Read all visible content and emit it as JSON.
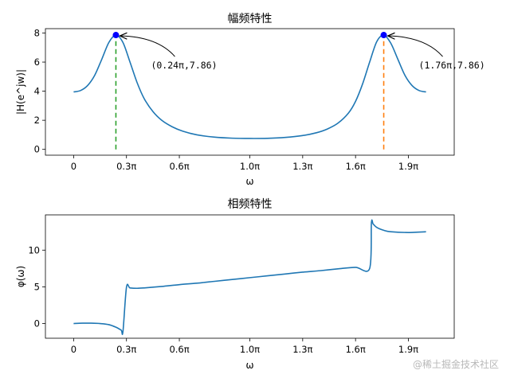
{
  "chart_data": [
    {
      "type": "line",
      "title": "幅频特性",
      "xlabel": "ω",
      "ylabel": "|H(e^jw)|",
      "xlim": [
        -0.16,
        2.16
      ],
      "ylim": [
        -0.4,
        8.3
      ],
      "grid": false,
      "color": "#1f77b4",
      "xticks": [
        {
          "v": 0,
          "label": "0"
        },
        {
          "v": 0.3,
          "label": "0.3π"
        },
        {
          "v": 0.6,
          "label": "0.6π"
        },
        {
          "v": 1.0,
          "label": "1.0π"
        },
        {
          "v": 1.3,
          "label": "1.3π"
        },
        {
          "v": 1.6,
          "label": "1.6π"
        },
        {
          "v": 1.9,
          "label": "1.9π"
        }
      ],
      "yticks": [
        {
          "v": 0,
          "label": "0"
        },
        {
          "v": 2,
          "label": "2"
        },
        {
          "v": 4,
          "label": "4"
        },
        {
          "v": 6,
          "label": "6"
        },
        {
          "v": 8,
          "label": "8"
        }
      ],
      "x": [
        0.0,
        0.04,
        0.08,
        0.12,
        0.16,
        0.2,
        0.24,
        0.28,
        0.32,
        0.36,
        0.4,
        0.45,
        0.5,
        0.56,
        0.62,
        0.7,
        0.8,
        0.9,
        1.0,
        1.1,
        1.2,
        1.3,
        1.38,
        1.44,
        1.5,
        1.56,
        1.6,
        1.64,
        1.68,
        1.72,
        1.76,
        1.8,
        1.84,
        1.88,
        1.92,
        1.96,
        2.0
      ],
      "y": [
        3.95,
        4.05,
        4.4,
        5.1,
        6.2,
        7.35,
        7.86,
        7.35,
        6.0,
        4.6,
        3.5,
        2.6,
        2.0,
        1.55,
        1.25,
        1.0,
        0.84,
        0.77,
        0.75,
        0.76,
        0.82,
        0.95,
        1.15,
        1.4,
        1.8,
        2.5,
        3.3,
        4.5,
        6.0,
        7.4,
        7.86,
        7.3,
        6.2,
        5.1,
        4.4,
        4.05,
        3.95
      ],
      "peaks": [
        {
          "x": 0.24,
          "y": 7.86,
          "label": "(0.24π,7.86)",
          "line_color": "#2ca02c"
        },
        {
          "x": 1.76,
          "y": 7.86,
          "label": "(1.76π,7.86)",
          "line_color": "#ff7f0e"
        }
      ],
      "marker_color": "#0000ff"
    },
    {
      "type": "line",
      "title": "相频特性",
      "xlabel": "ω",
      "ylabel": "φ(ω)",
      "xlim": [
        -0.16,
        2.16
      ],
      "ylim": [
        -2.0,
        14.8
      ],
      "grid": false,
      "color": "#1f77b4",
      "xticks": [
        {
          "v": 0,
          "label": "0"
        },
        {
          "v": 0.3,
          "label": "0.3π"
        },
        {
          "v": 0.6,
          "label": "0.6π"
        },
        {
          "v": 1.0,
          "label": "1.0π"
        },
        {
          "v": 1.3,
          "label": "1.3π"
        },
        {
          "v": 1.6,
          "label": "1.6π"
        },
        {
          "v": 1.9,
          "label": "1.9π"
        }
      ],
      "yticks": [
        {
          "v": 0,
          "label": "0"
        },
        {
          "v": 5,
          "label": "5"
        },
        {
          "v": 10,
          "label": "10"
        }
      ],
      "x": [
        0.0,
        0.05,
        0.1,
        0.15,
        0.2,
        0.24,
        0.27,
        0.28,
        0.3,
        0.32,
        0.36,
        0.4,
        0.5,
        0.6,
        0.7,
        0.8,
        0.9,
        1.0,
        1.1,
        1.2,
        1.3,
        1.4,
        1.5,
        1.6,
        1.68,
        1.69,
        1.7,
        1.72,
        1.76,
        1.8,
        1.9,
        2.0
      ],
      "y": [
        0.0,
        0.05,
        0.05,
        0.0,
        -0.15,
        -0.5,
        -0.9,
        -1.1,
        4.95,
        4.85,
        4.8,
        4.85,
        5.05,
        5.3,
        5.5,
        5.75,
        6.0,
        6.25,
        6.5,
        6.75,
        7.0,
        7.2,
        7.45,
        7.65,
        7.5,
        13.7,
        13.55,
        13.1,
        12.7,
        12.5,
        12.4,
        12.5
      ]
    }
  ],
  "watermark": "@稀土掘金技术社区"
}
